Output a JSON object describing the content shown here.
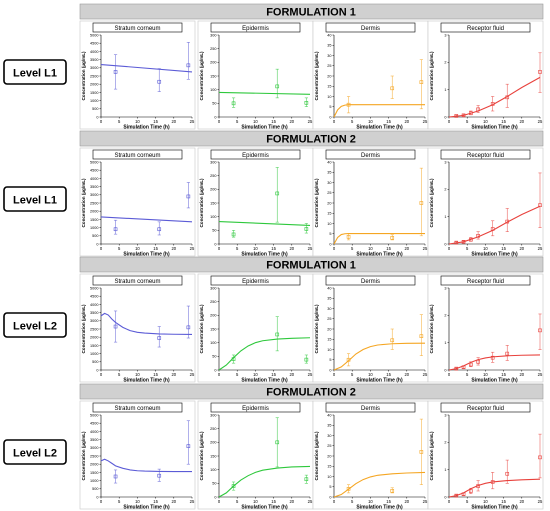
{
  "axis_labels": {
    "x": "Simulation Time (h)",
    "y": "Concentration (µg/mL)"
  },
  "x_ticks": [
    0,
    5,
    10,
    15,
    20,
    25
  ],
  "colors": {
    "Stratum corneum": "#5b5bd6",
    "Epidermis": "#2ec83c",
    "Dermis": "#f5a623",
    "Receptor fluid": "#e8413c"
  },
  "panels": [
    {
      "title": "FORMULATION 1",
      "level": "Level L1",
      "model_shape": "steady"
    },
    {
      "title": "FORMULATION 2",
      "level": "Level L1",
      "model_shape": "steady"
    },
    {
      "title": "FORMULATION 1",
      "level": "Level L2",
      "model_shape": "rise"
    },
    {
      "title": "FORMULATION 2",
      "level": "Level L2",
      "model_shape": "rise"
    }
  ],
  "chart_data": [
    {
      "type": "line",
      "panel": 0,
      "title": "Stratum corneum",
      "xlim": [
        0,
        25
      ],
      "ylim": [
        0,
        5000
      ],
      "yticks": [
        0,
        500,
        1000,
        1500,
        2000,
        2500,
        3000,
        3500,
        4000,
        4500,
        5000
      ],
      "model": {
        "x": [
          0,
          25
        ],
        "y": [
          3200,
          2750
        ]
      },
      "observed": {
        "x": [
          4,
          16,
          24
        ],
        "y": [
          2750,
          2150,
          3150
        ],
        "lower": [
          1700,
          1550,
          2300
        ],
        "upper": [
          3800,
          2950,
          4550
        ]
      }
    },
    {
      "type": "line",
      "panel": 0,
      "title": "Epidermis",
      "xlim": [
        0,
        25
      ],
      "ylim": [
        0,
        300
      ],
      "yticks": [
        0,
        50,
        100,
        150,
        200,
        250,
        300
      ],
      "model": {
        "x": [
          0,
          25
        ],
        "y": [
          90,
          83
        ]
      },
      "observed": {
        "x": [
          4,
          16,
          24
        ],
        "y": [
          50,
          112,
          52
        ],
        "lower": [
          35,
          70,
          38
        ],
        "upper": [
          70,
          175,
          70
        ]
      }
    },
    {
      "type": "line",
      "panel": 0,
      "title": "Dermis",
      "xlim": [
        0,
        25
      ],
      "ylim": [
        0,
        40
      ],
      "yticks": [
        0,
        5,
        10,
        15,
        20,
        25,
        30,
        35,
        40
      ],
      "model": {
        "x": [
          0,
          1,
          2,
          3,
          4,
          6,
          8,
          12,
          16,
          20,
          25
        ],
        "y": [
          0,
          3.5,
          5.2,
          5.8,
          6.0,
          6.0,
          6.0,
          6.0,
          6.0,
          6.0,
          6.0
        ]
      },
      "observed": {
        "x": [
          4,
          16,
          24
        ],
        "y": [
          6,
          14,
          17
        ],
        "lower": [
          2,
          9,
          4
        ],
        "upper": [
          10,
          20,
          28
        ]
      }
    },
    {
      "type": "line",
      "panel": 0,
      "title": "Receptor fluid",
      "xlim": [
        0,
        25
      ],
      "ylim": [
        0,
        3
      ],
      "yticks": [
        0,
        1,
        2,
        3
      ],
      "model": {
        "x": [
          0,
          4,
          8,
          12,
          16,
          20,
          25
        ],
        "y": [
          0,
          0.06,
          0.22,
          0.45,
          0.75,
          1.08,
          1.45
        ]
      },
      "observed": {
        "x": [
          2,
          4,
          6,
          8,
          12,
          16,
          25
        ],
        "y": [
          0.04,
          0.06,
          0.14,
          0.28,
          0.48,
          0.72,
          1.65
        ],
        "lower": [
          0.02,
          0.03,
          0.08,
          0.16,
          0.22,
          0.35,
          0.9
        ],
        "upper": [
          0.07,
          0.1,
          0.22,
          0.42,
          0.75,
          1.2,
          2.35
        ]
      }
    },
    {
      "type": "line",
      "panel": 1,
      "title": "Stratum corneum",
      "xlim": [
        0,
        25
      ],
      "ylim": [
        0,
        5000
      ],
      "yticks": [
        0,
        500,
        1000,
        1500,
        2000,
        2500,
        3000,
        3500,
        4000,
        4500,
        5000
      ],
      "model": {
        "x": [
          0,
          25
        ],
        "y": [
          1650,
          1350
        ]
      },
      "observed": {
        "x": [
          4,
          16,
          24
        ],
        "y": [
          900,
          900,
          2900
        ],
        "lower": [
          600,
          550,
          2200
        ],
        "upper": [
          1450,
          1350,
          3750
        ]
      }
    },
    {
      "type": "line",
      "panel": 1,
      "title": "Epidermis",
      "xlim": [
        0,
        25
      ],
      "ylim": [
        0,
        300
      ],
      "yticks": [
        0,
        50,
        100,
        150,
        200,
        250,
        300
      ],
      "model": {
        "x": [
          0,
          25
        ],
        "y": [
          82,
          68
        ]
      },
      "observed": {
        "x": [
          4,
          16,
          24
        ],
        "y": [
          35,
          185,
          55
        ],
        "lower": [
          25,
          80,
          40
        ],
        "upper": [
          50,
          280,
          75
        ]
      }
    },
    {
      "type": "line",
      "panel": 1,
      "title": "Dermis",
      "xlim": [
        0,
        25
      ],
      "ylim": [
        0,
        40
      ],
      "yticks": [
        0,
        5,
        10,
        15,
        20,
        25,
        30,
        35,
        40
      ],
      "model": {
        "x": [
          0,
          1,
          2,
          3,
          4,
          6,
          8,
          12,
          16,
          20,
          25
        ],
        "y": [
          0,
          3.2,
          4.6,
          5.0,
          5.1,
          5.1,
          5.1,
          5.1,
          5.1,
          5.1,
          5.1
        ]
      },
      "observed": {
        "x": [
          4,
          16,
          24
        ],
        "y": [
          3.5,
          3,
          20
        ],
        "lower": [
          2,
          2,
          4
        ],
        "upper": [
          5,
          4.5,
          37
        ]
      }
    },
    {
      "type": "line",
      "panel": 1,
      "title": "Receptor fluid",
      "xlim": [
        0,
        25
      ],
      "ylim": [
        0,
        3
      ],
      "yticks": [
        0,
        1,
        2,
        3
      ],
      "model": {
        "x": [
          0,
          4,
          8,
          12,
          16,
          20,
          25
        ],
        "y": [
          0,
          0.08,
          0.26,
          0.5,
          0.8,
          1.08,
          1.38
        ]
      },
      "observed": {
        "x": [
          2,
          4,
          6,
          8,
          12,
          16,
          25
        ],
        "y": [
          0.05,
          0.08,
          0.16,
          0.3,
          0.55,
          0.82,
          1.42
        ],
        "lower": [
          0.03,
          0.05,
          0.1,
          0.18,
          0.3,
          0.45,
          0.6
        ],
        "upper": [
          0.08,
          0.12,
          0.24,
          0.45,
          0.85,
          1.3,
          2.6
        ]
      }
    },
    {
      "type": "line",
      "panel": 2,
      "title": "Stratum corneum",
      "xlim": [
        0,
        25
      ],
      "ylim": [
        0,
        5000
      ],
      "yticks": [
        0,
        500,
        1000,
        1500,
        2000,
        2500,
        3000,
        3500,
        4000,
        4500,
        5000
      ],
      "model": {
        "x": [
          0,
          1,
          2,
          3,
          4,
          6,
          8,
          10,
          12,
          16,
          20,
          25
        ],
        "y": [
          3300,
          3450,
          3350,
          3100,
          2900,
          2600,
          2400,
          2300,
          2250,
          2200,
          2180,
          2170
        ]
      },
      "observed": {
        "x": [
          4,
          16,
          24
        ],
        "y": [
          2650,
          1950,
          2600
        ],
        "lower": [
          1700,
          1400,
          1950
        ],
        "upper": [
          3600,
          2650,
          3900
        ]
      }
    },
    {
      "type": "line",
      "panel": 2,
      "title": "Epidermis",
      "xlim": [
        0,
        25
      ],
      "ylim": [
        0,
        300
      ],
      "yticks": [
        0,
        50,
        100,
        150,
        200,
        250,
        300
      ],
      "model": {
        "x": [
          0,
          2,
          4,
          6,
          8,
          10,
          12,
          16,
          20,
          25
        ],
        "y": [
          0,
          18,
          45,
          70,
          88,
          100,
          107,
          113,
          116,
          118
        ]
      },
      "observed": {
        "x": [
          4,
          16,
          24
        ],
        "y": [
          40,
          130,
          38
        ],
        "lower": [
          25,
          70,
          25
        ],
        "upper": [
          55,
          195,
          55
        ]
      }
    },
    {
      "type": "line",
      "panel": 2,
      "title": "Dermis",
      "xlim": [
        0,
        25
      ],
      "ylim": [
        0,
        40
      ],
      "yticks": [
        0,
        5,
        10,
        15,
        20,
        25,
        30,
        35,
        40
      ],
      "model": {
        "x": [
          0,
          2,
          4,
          6,
          8,
          10,
          12,
          16,
          20,
          25
        ],
        "y": [
          0,
          1.5,
          4.5,
          7.8,
          10.0,
          11.4,
          12.2,
          12.8,
          13.0,
          13.1
        ]
      },
      "observed": {
        "x": [
          4,
          16,
          24
        ],
        "y": [
          5,
          14.5,
          16.5
        ],
        "lower": [
          2,
          10,
          7
        ],
        "upper": [
          8,
          20,
          27
        ]
      }
    },
    {
      "type": "line",
      "panel": 2,
      "title": "Receptor fluid",
      "xlim": [
        0,
        25
      ],
      "ylim": [
        0,
        3
      ],
      "yticks": [
        0,
        1,
        2,
        3
      ],
      "model": {
        "x": [
          0,
          2,
          4,
          6,
          8,
          10,
          12,
          16,
          20,
          25
        ],
        "y": [
          0,
          0.05,
          0.15,
          0.28,
          0.38,
          0.44,
          0.48,
          0.52,
          0.54,
          0.55
        ]
      },
      "observed": {
        "x": [
          2,
          4,
          6,
          8,
          12,
          16,
          25
        ],
        "y": [
          0.05,
          0.1,
          0.2,
          0.3,
          0.45,
          0.6,
          1.45
        ],
        "lower": [
          0.03,
          0.06,
          0.12,
          0.18,
          0.28,
          0.35,
          0.75
        ],
        "upper": [
          0.08,
          0.15,
          0.3,
          0.45,
          0.65,
          0.9,
          2.05
        ]
      }
    },
    {
      "type": "line",
      "panel": 3,
      "title": "Stratum corneum",
      "xlim": [
        0,
        25
      ],
      "ylim": [
        0,
        5000
      ],
      "yticks": [
        0,
        500,
        1000,
        1500,
        2000,
        2500,
        3000,
        3500,
        4000,
        4500,
        5000
      ],
      "model": {
        "x": [
          0,
          1,
          2,
          3,
          4,
          6,
          8,
          10,
          12,
          16,
          20,
          25
        ],
        "y": [
          2200,
          2300,
          2200,
          2050,
          1900,
          1750,
          1650,
          1600,
          1580,
          1560,
          1550,
          1550
        ]
      },
      "observed": {
        "x": [
          4,
          16,
          24
        ],
        "y": [
          1250,
          1300,
          3100
        ],
        "lower": [
          850,
          950,
          2000
        ],
        "upper": [
          1650,
          1700,
          4650
        ]
      }
    },
    {
      "type": "line",
      "panel": 3,
      "title": "Epidermis",
      "xlim": [
        0,
        25
      ],
      "ylim": [
        0,
        300
      ],
      "yticks": [
        0,
        50,
        100,
        150,
        200,
        250,
        300
      ],
      "model": {
        "x": [
          0,
          2,
          4,
          6,
          8,
          10,
          12,
          16,
          20,
          25
        ],
        "y": [
          0,
          15,
          40,
          62,
          78,
          90,
          98,
          106,
          110,
          112
        ]
      },
      "observed": {
        "x": [
          4,
          16,
          24
        ],
        "y": [
          40,
          200,
          65
        ],
        "lower": [
          25,
          110,
          50
        ],
        "upper": [
          55,
          290,
          80
        ]
      }
    },
    {
      "type": "line",
      "panel": 3,
      "title": "Dermis",
      "xlim": [
        0,
        25
      ],
      "ylim": [
        0,
        40
      ],
      "yticks": [
        0,
        5,
        10,
        15,
        20,
        25,
        30,
        35,
        40
      ],
      "model": {
        "x": [
          0,
          2,
          4,
          6,
          8,
          10,
          12,
          16,
          20,
          25
        ],
        "y": [
          0,
          1.2,
          3.8,
          6.5,
          8.5,
          9.8,
          10.6,
          11.3,
          11.7,
          12.0
        ]
      },
      "observed": {
        "x": [
          4,
          16,
          24
        ],
        "y": [
          4,
          3,
          22
        ],
        "lower": [
          2,
          2,
          6
        ],
        "upper": [
          6,
          4.5,
          38
        ]
      }
    },
    {
      "type": "line",
      "panel": 3,
      "title": "Receptor fluid",
      "xlim": [
        0,
        25
      ],
      "ylim": [
        0,
        3
      ],
      "yticks": [
        0,
        1,
        2,
        3
      ],
      "model": {
        "x": [
          0,
          2,
          4,
          6,
          8,
          10,
          12,
          16,
          20,
          25
        ],
        "y": [
          0,
          0.05,
          0.15,
          0.3,
          0.42,
          0.5,
          0.55,
          0.6,
          0.63,
          0.65
        ]
      },
      "observed": {
        "x": [
          2,
          4,
          6,
          8,
          12,
          16,
          25
        ],
        "y": [
          0.05,
          0.1,
          0.22,
          0.4,
          0.55,
          0.85,
          1.45
        ],
        "lower": [
          0.03,
          0.06,
          0.12,
          0.22,
          0.3,
          0.5,
          0.7
        ],
        "upper": [
          0.08,
          0.15,
          0.32,
          0.6,
          0.9,
          1.35,
          2.3
        ]
      }
    }
  ]
}
